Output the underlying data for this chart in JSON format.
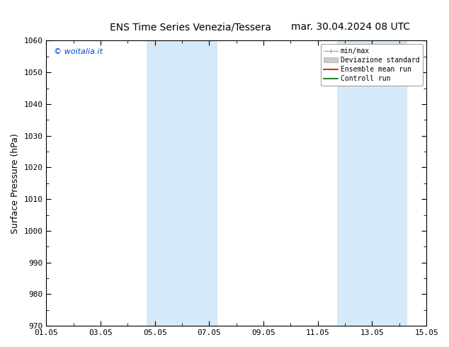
{
  "title_left": "ENS Time Series Venezia/Tessera",
  "title_right": "mar. 30.04.2024 08 UTC",
  "ylabel": "Surface Pressure (hPa)",
  "ylim": [
    970,
    1060
  ],
  "yticks": [
    970,
    980,
    990,
    1000,
    1010,
    1020,
    1030,
    1040,
    1050,
    1060
  ],
  "xtick_labels": [
    "01.05",
    "03.05",
    "05.05",
    "07.05",
    "09.05",
    "11.05",
    "13.05",
    "15.05"
  ],
  "xtick_positions": [
    0,
    2,
    4,
    6,
    8,
    10,
    12,
    14
  ],
  "shade_regions": [
    {
      "start": 3.7,
      "end": 6.3,
      "color": "#d6e9f8"
    },
    {
      "start": 10.7,
      "end": 13.3,
      "color": "#d6e9f8"
    }
  ],
  "watermark": "© woitalia.it",
  "watermark_color": "#0044cc",
  "background_color": "#ffffff",
  "title_fontsize": 10,
  "tick_fontsize": 8,
  "ylabel_fontsize": 9
}
